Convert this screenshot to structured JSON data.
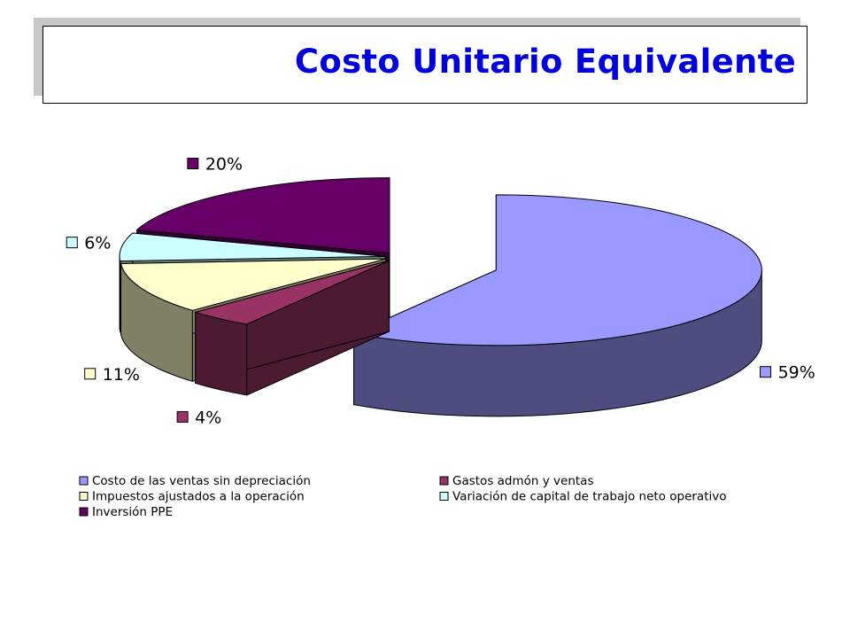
{
  "title": "Costo Unitario Equivalente",
  "chart_data": {
    "type": "pie",
    "variant": "3d-exploded",
    "legend_position": "bottom",
    "series": [
      {
        "name": "Costo de las ventas sin depreciación",
        "value": 59,
        "label": "59%",
        "color": "#9999ff"
      },
      {
        "name": "Gastos admón y ventas",
        "value": 4,
        "label": "4%",
        "color": "#993366"
      },
      {
        "name": "Impuestos ajustados a la operación",
        "value": 11,
        "label": "11%",
        "color": "#ffffcc"
      },
      {
        "name": "Variación de capital de trabajo neto operativo",
        "value": 6,
        "label": "6%",
        "color": "#ccffff"
      },
      {
        "name": "Inversión PPE",
        "value": 20,
        "label": "20%",
        "color": "#660066"
      }
    ]
  }
}
